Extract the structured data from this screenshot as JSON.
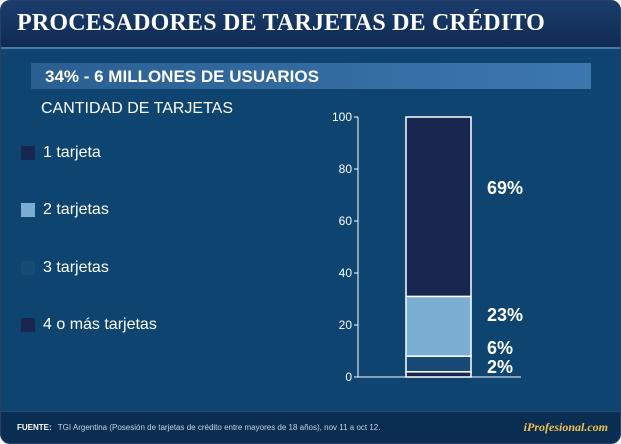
{
  "header": {
    "title": "PROCESADORES DE TARJETAS DE CRÉDITO"
  },
  "banner": {
    "text": "34% - 6 MILLONES DE USUARIOS"
  },
  "subtitle": "CANTIDAD DE TARJETAS",
  "legend": [
    {
      "label": "1 tarjeta",
      "color": "#17274f"
    },
    {
      "label": "2 tarjetas",
      "color": "#7aaed2"
    },
    {
      "label": "3 tarjetas",
      "color": "#174a75"
    },
    {
      "label": "4 o más tarjetas",
      "color": "#17274f"
    }
  ],
  "chart_data": {
    "type": "bar",
    "stacked": true,
    "title": "",
    "xlabel": "",
    "ylabel": "",
    "ylim": [
      0,
      100
    ],
    "y_ticks": [
      "0",
      "20",
      "40",
      "60",
      "80",
      "100"
    ],
    "categories": [
      ""
    ],
    "series": [
      {
        "name": "1 tarjeta",
        "values": [
          69
        ],
        "label": "69%",
        "color": "#17274f"
      },
      {
        "name": "2 tarjetas",
        "values": [
          23
        ],
        "label": "23%",
        "color": "#7aaed2"
      },
      {
        "name": "3 tarjetas",
        "values": [
          6
        ],
        "label": "6%",
        "color": "#174a75"
      },
      {
        "name": "4 o más tarjetas",
        "values": [
          2
        ],
        "label": "2%",
        "color": "#17274f"
      }
    ],
    "stack_order_bottom_to_top": [
      "4 o más tarjetas",
      "3 tarjetas",
      "2 tarjetas",
      "1 tarjeta"
    ]
  },
  "footer": {
    "source_label": "FUENTE:",
    "source_text": "TGI  Argentina (Posesión de tarjetas de crédito entre mayores de 18 años), nov 11 a oct 12.",
    "brand": "iProfesional.com"
  }
}
